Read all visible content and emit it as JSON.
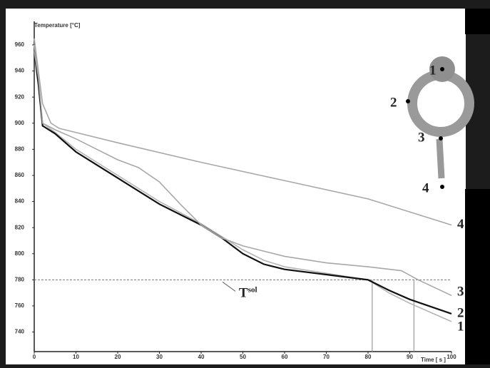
{
  "chart_data": {
    "type": "line",
    "y_label": "Temperature [°C]",
    "x_label": "Time [ s ]",
    "xlim": [
      0,
      100
    ],
    "xticks": [
      0,
      10,
      20,
      30,
      40,
      50,
      60,
      70,
      80,
      90,
      100
    ],
    "ylim": [
      725,
      978
    ],
    "yticks": [
      740,
      760,
      780,
      800,
      820,
      840,
      860,
      880,
      900,
      920,
      940,
      960
    ],
    "series": [
      {
        "name": "1",
        "color": "#b5b5b5",
        "x": [
          0,
          1,
          2,
          5,
          10,
          20,
          30,
          40,
          45,
          50,
          55,
          60,
          70,
          80,
          85,
          90,
          100
        ],
        "values": [
          960,
          935,
          900,
          893,
          880,
          860,
          840,
          823,
          813,
          803,
          795,
          790,
          785,
          780,
          770,
          762,
          748
        ]
      },
      {
        "name": "2",
        "color": "#111111",
        "x": [
          0,
          1,
          2,
          5,
          10,
          20,
          30,
          40,
          45,
          50,
          55,
          60,
          70,
          80,
          85,
          90,
          100
        ],
        "values": [
          955,
          930,
          898,
          892,
          878,
          858,
          838,
          822,
          812,
          800,
          792,
          788,
          784,
          780,
          772,
          765,
          754
        ]
      },
      {
        "name": "3",
        "color": "#a8a8a8",
        "x": [
          0,
          1,
          2,
          5,
          10,
          20,
          25,
          30,
          35,
          40,
          45,
          50,
          60,
          70,
          80,
          88,
          92,
          100
        ],
        "values": [
          955,
          935,
          900,
          895,
          888,
          872,
          866,
          855,
          838,
          822,
          812,
          806,
          798,
          793,
          790,
          787,
          780,
          768
        ]
      },
      {
        "name": "4",
        "color": "#a8a8a8",
        "x": [
          0,
          1,
          2,
          4,
          6,
          20,
          40,
          60,
          80,
          100
        ],
        "values": [
          965,
          940,
          915,
          900,
          896,
          885,
          870,
          856,
          842,
          822
        ]
      }
    ],
    "annotation": {
      "text": "T",
      "superscript": "sol",
      "value": 780
    },
    "vlines": [
      81,
      91
    ]
  }
}
